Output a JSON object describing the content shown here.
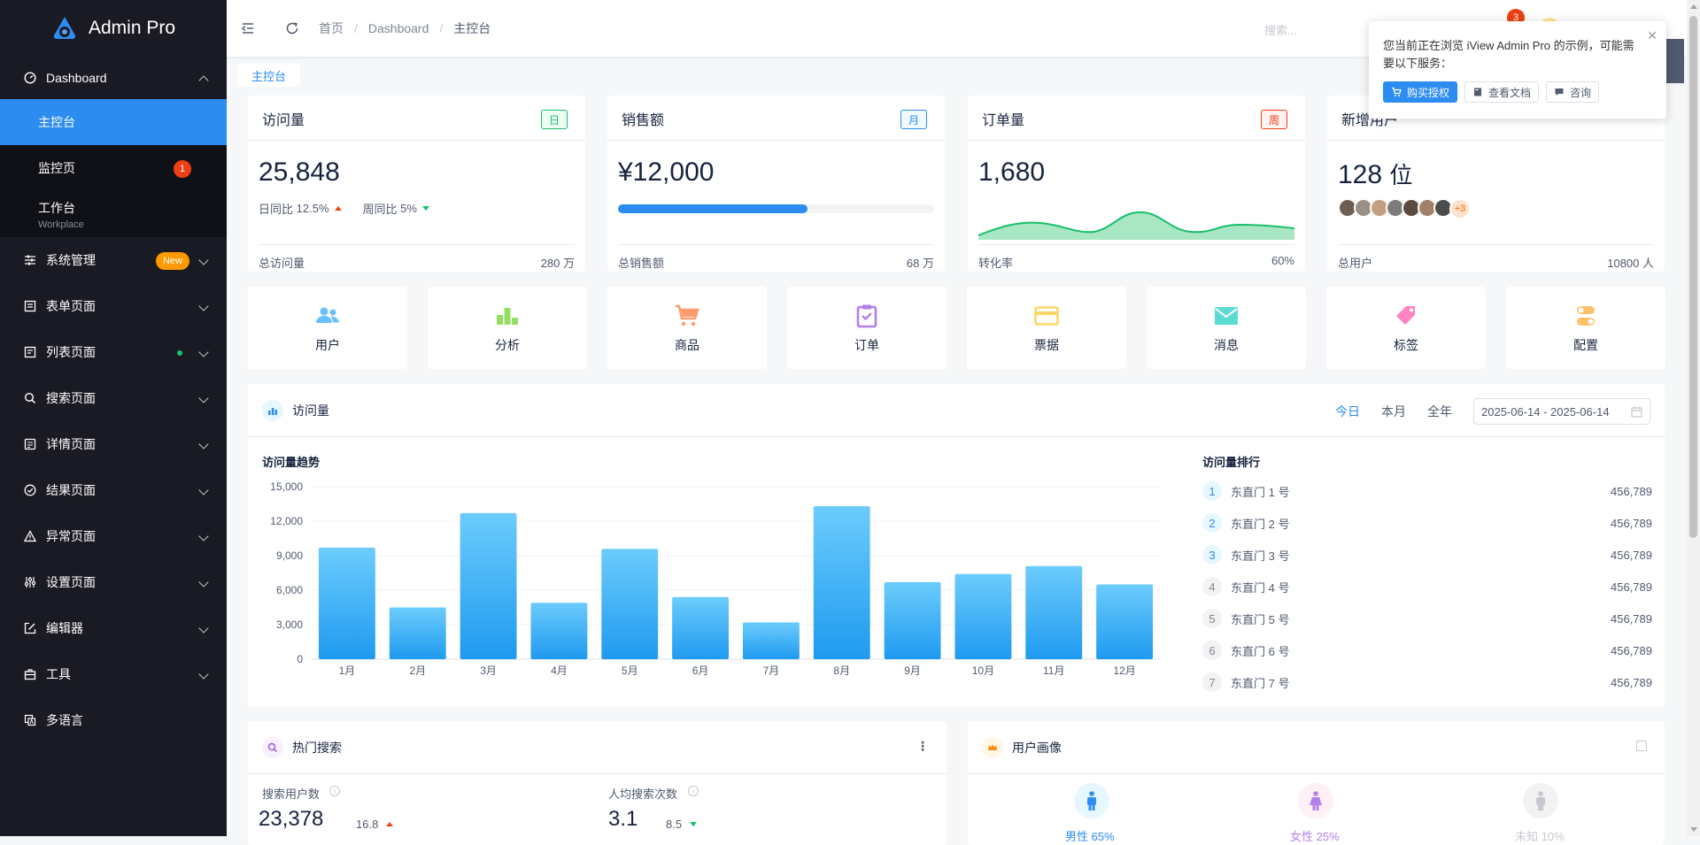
{
  "app": {
    "title": "Admin Pro"
  },
  "sidebar": {
    "dashboard": "Dashboard",
    "sub": [
      {
        "label": "主控台"
      },
      {
        "label": "监控页",
        "badge": "1"
      },
      {
        "label": "工作台",
        "small": "Workplace"
      }
    ],
    "items": [
      {
        "label": "系统管理",
        "badge": "New"
      },
      {
        "label": "表单页面"
      },
      {
        "label": "列表页面"
      },
      {
        "label": "搜索页面"
      },
      {
        "label": "详情页面"
      },
      {
        "label": "结果页面"
      },
      {
        "label": "异常页面"
      },
      {
        "label": "设置页面"
      },
      {
        "label": "编辑器"
      },
      {
        "label": "工具"
      },
      {
        "label": "多语言"
      }
    ]
  },
  "header": {
    "breadcrumb": [
      "首页",
      "Dashboard",
      "主控台"
    ],
    "search_placeholder": "搜索...",
    "notif_count": "3"
  },
  "popover": {
    "text": "您当前正在浏览 iView Admin Pro 的示例，可能需要以下服务：",
    "buttons": [
      "购买授权",
      "查看文档",
      "咨询"
    ]
  },
  "tagbar": {
    "active": "主控台"
  },
  "stats": [
    {
      "title": "访问量",
      "tag": "日",
      "value": "25,848",
      "day_label": "日同比",
      "day_value": "12.5%",
      "week_label": "周同比",
      "week_value": "5%",
      "foot_label": "总访问量",
      "foot_value": "280 万"
    },
    {
      "title": "销售额",
      "tag": "月",
      "value": "¥12,000",
      "progress": 0.6,
      "foot_label": "总销售额",
      "foot_value": "68 万"
    },
    {
      "title": "订单量",
      "tag": "周",
      "value": "1,680",
      "foot_label": "转化率",
      "foot_value": "60%"
    },
    {
      "title": "新增用户",
      "value": "128",
      "unit": "位",
      "avatars_more": "+3",
      "foot_label": "总用户",
      "foot_value": "10800 人"
    }
  ],
  "quick": [
    {
      "label": "用户"
    },
    {
      "label": "分析"
    },
    {
      "label": "商品"
    },
    {
      "label": "订单"
    },
    {
      "label": "票据"
    },
    {
      "label": "消息"
    },
    {
      "label": "标签"
    },
    {
      "label": "配置"
    }
  ],
  "visits": {
    "title": "访问量",
    "ranges": [
      "今日",
      "本月",
      "全年"
    ],
    "date_range": "2025-06-14 - 2025-06-14",
    "trend_title": "访问量趋势",
    "rank_title": "访问量排行",
    "ranking": [
      {
        "rank": "1",
        "name": "东直门 1 号",
        "value": "456,789"
      },
      {
        "rank": "2",
        "name": "东直门 2 号",
        "value": "456,789"
      },
      {
        "rank": "3",
        "name": "东直门 3 号",
        "value": "456,789"
      },
      {
        "rank": "4",
        "name": "东直门 4 号",
        "value": "456,789"
      },
      {
        "rank": "5",
        "name": "东直门 5 号",
        "value": "456,789"
      },
      {
        "rank": "6",
        "name": "东直门 6 号",
        "value": "456,789"
      },
      {
        "rank": "7",
        "name": "东直门 7 号",
        "value": "456,789"
      }
    ]
  },
  "chart_data": {
    "type": "bar",
    "title": "访问量趋势",
    "categories": [
      "1月",
      "2月",
      "3月",
      "4月",
      "5月",
      "6月",
      "7月",
      "8月",
      "9月",
      "10月",
      "11月",
      "12月"
    ],
    "values": [
      9700,
      4500,
      12700,
      4900,
      9600,
      5400,
      3200,
      13300,
      6700,
      7400,
      8100,
      6500
    ],
    "ylim": [
      0,
      15000
    ],
    "yticks": [
      "0",
      "3,000",
      "6,000",
      "9,000",
      "12,000",
      "15,000"
    ],
    "xlabel": "",
    "ylabel": ""
  },
  "hot_search": {
    "title": "热门搜索",
    "users_label": "搜索用户数",
    "users_value": "23,378",
    "users_change": "16.8",
    "avg_label": "人均搜索次数",
    "avg_value": "3.1",
    "avg_change": "8.5"
  },
  "portrait": {
    "title": "用户画像",
    "male": "男性 65%",
    "female": "女性 25%",
    "unknown": "未知 10%"
  },
  "colors": {
    "primary": "#2d8cf0",
    "sidebar": "#191a23",
    "red": "#ed4014",
    "green": "#19be6b"
  }
}
